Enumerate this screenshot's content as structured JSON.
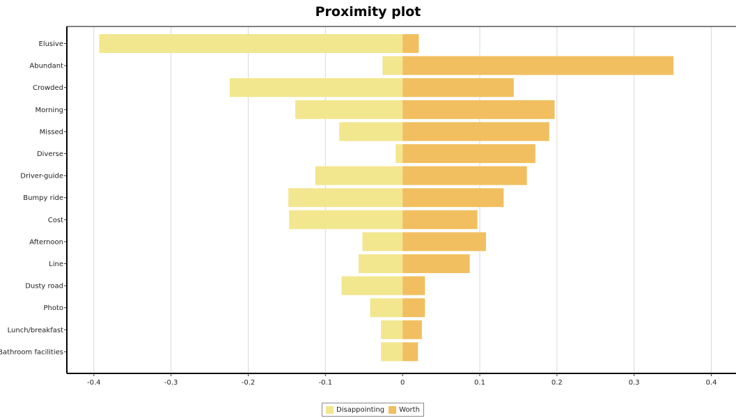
{
  "chart_data": {
    "type": "bar",
    "orientation": "horizontal",
    "title": "Proximity plot",
    "categories": [
      "Elusive",
      "Abundant",
      "Crowded",
      "Morning",
      "Missed",
      "Diverse",
      "Driver-guide",
      "Bumpy ride",
      "Cost",
      "Afternoon",
      "Line",
      "Dusty road",
      "Photo",
      "Lunch/breakfast",
      "Bathroom facilities"
    ],
    "series": [
      {
        "name": "Disappointing",
        "color": "#f2e68f",
        "values": [
          -0.393,
          -0.026,
          -0.224,
          -0.139,
          -0.082,
          -0.009,
          -0.113,
          -0.148,
          -0.147,
          -0.052,
          -0.057,
          -0.079,
          -0.042,
          -0.028,
          -0.028
        ]
      },
      {
        "name": "Worth",
        "color": "#f1bf5f",
        "values": [
          0.021,
          0.351,
          0.144,
          0.197,
          0.19,
          0.172,
          0.161,
          0.131,
          0.097,
          0.108,
          0.087,
          0.029,
          0.029,
          0.025,
          0.02
        ]
      }
    ],
    "xlim": [
      -0.435,
      0.432
    ],
    "xticks": [
      "-0.4",
      "-0.3",
      "-0.2",
      "-0.1",
      "0",
      "0.1",
      "0.2",
      "0.3",
      "0.4"
    ],
    "xtick_values": [
      -0.4,
      -0.3,
      -0.2,
      -0.1,
      0,
      0.1,
      0.2,
      0.3,
      0.4
    ],
    "grid": true,
    "legend_position": "bottom-center"
  }
}
